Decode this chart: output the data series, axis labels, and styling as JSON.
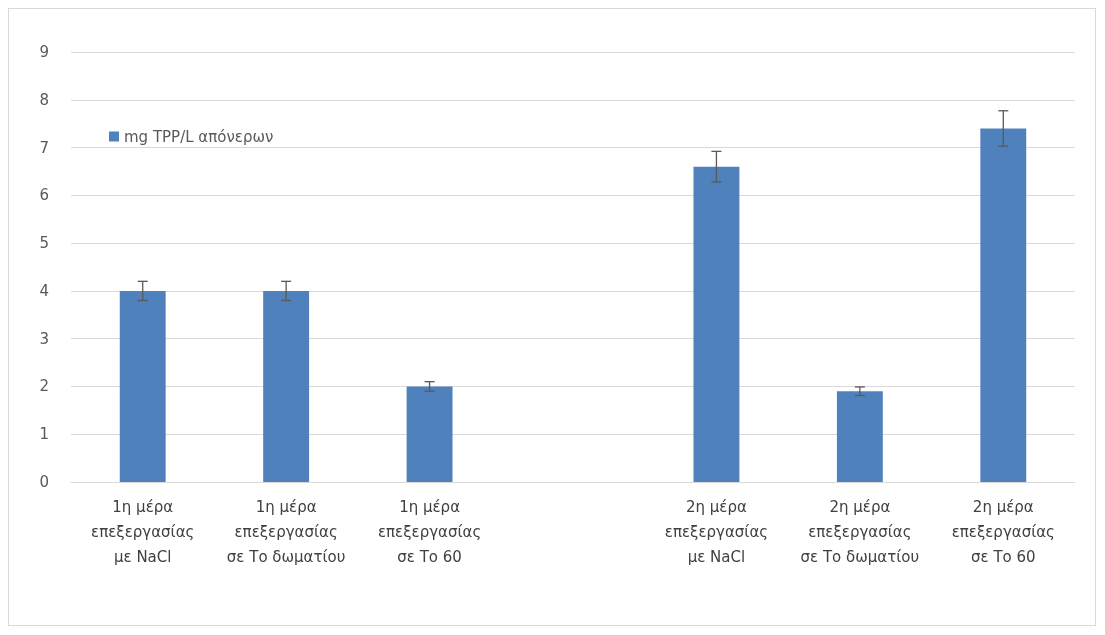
{
  "chart_data": {
    "type": "bar",
    "categories": [
      "1η μέρα\nεπεξεργασίας\nμε NaCl",
      "1η μέρα\nεπεξεργασίας\nσε Το δωματίου",
      "1η μέρα\nεπεξεργασίας\nσε Το 60",
      null,
      "2η μέρα\nεπεξεργασίας\nμε NaCl",
      "2η μέρα\nεπεξεργασίας\nσε Το δωματίου",
      "2η μέρα\nεπεξεργασίας\nσε Το 60"
    ],
    "series": [
      {
        "name": "mg TPP/L απόνερων",
        "color": "#4f81bd",
        "values": [
          4.0,
          4.0,
          2.0,
          null,
          6.6,
          1.9,
          7.4
        ],
        "errors": [
          0.2,
          0.2,
          0.1,
          null,
          0.32,
          0.09,
          0.37
        ]
      }
    ],
    "ylim": [
      0,
      9
    ],
    "yticks": [
      0,
      1,
      2,
      3,
      4,
      5,
      6,
      7,
      8,
      9
    ],
    "grid": "y",
    "legend": "top left"
  }
}
